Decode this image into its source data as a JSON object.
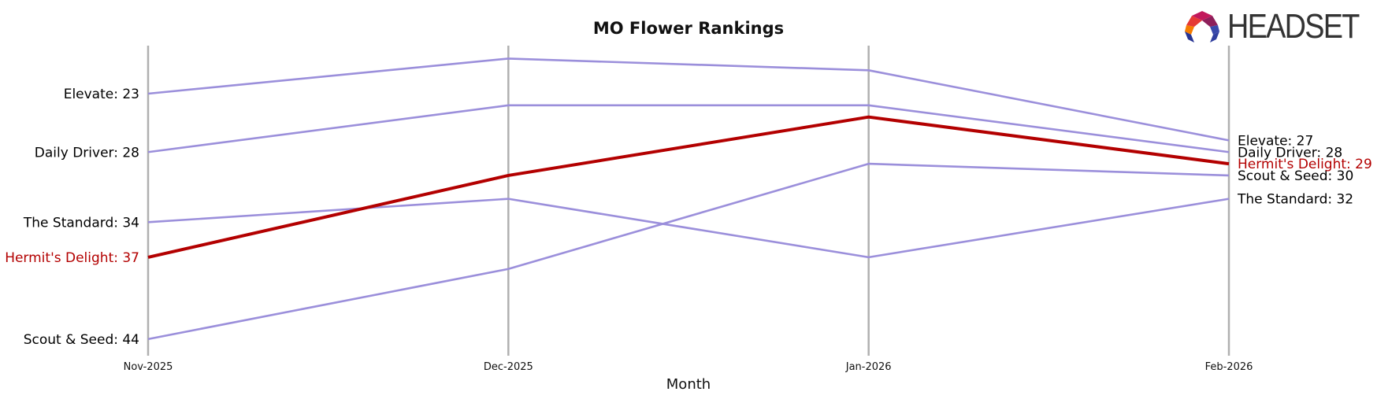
{
  "logo": {
    "text": "HEADSET"
  },
  "chart_data": {
    "type": "line",
    "title": "MO Flower Rankings",
    "xlabel": "Month",
    "ylabel": "",
    "categories": [
      "Nov-2025",
      "Dec-2025",
      "Jan-2026",
      "Feb-2026"
    ],
    "y_inverted": true,
    "ylim": [
      46.5,
      19
    ],
    "grid": "vertical lines at each month",
    "colors": {
      "series": "#9b8fdb",
      "highlight": "#b30000",
      "gridline": "#b0b0b0",
      "text": "#000000"
    },
    "series": [
      {
        "name": "Elevate",
        "values": [
          23,
          20,
          21,
          27
        ],
        "highlight": false,
        "start_label": "Elevate: 23",
        "end_label": "Elevate: 27"
      },
      {
        "name": "Daily Driver",
        "values": [
          28,
          24,
          24,
          28
        ],
        "highlight": false,
        "start_label": "Daily Driver: 28",
        "end_label": "Daily Driver: 28"
      },
      {
        "name": "The Standard",
        "values": [
          34,
          32,
          37,
          32
        ],
        "highlight": false,
        "start_label": "The Standard: 34",
        "end_label": "The Standard: 32"
      },
      {
        "name": "Scout & Seed",
        "values": [
          44,
          38,
          29,
          30
        ],
        "highlight": false,
        "start_label": "Scout & Seed: 44",
        "end_label": "Scout & Seed: 30"
      },
      {
        "name": "Hermit's Delight",
        "values": [
          37,
          30,
          25,
          29
        ],
        "highlight": true,
        "start_label": "Hermit's Delight: 37",
        "end_label": "Hermit's Delight: 29"
      }
    ]
  }
}
